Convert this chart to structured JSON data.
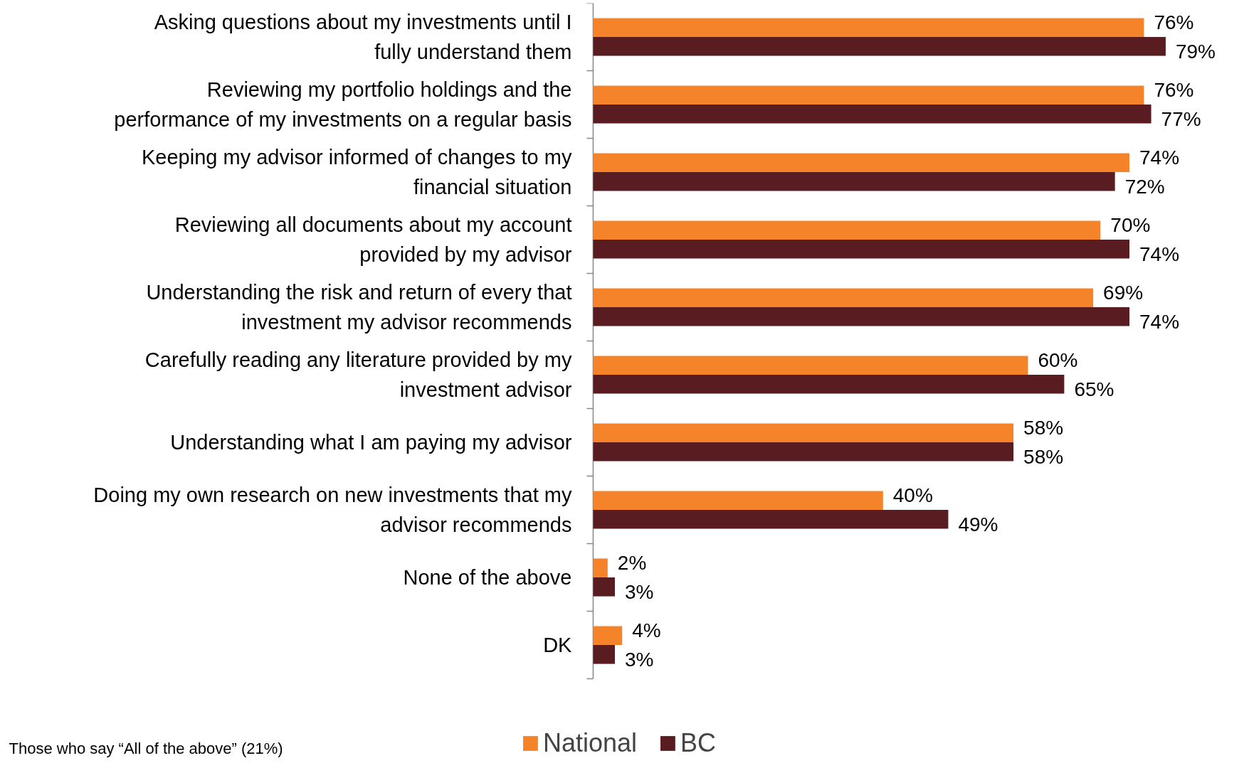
{
  "chart_data": {
    "type": "bar",
    "orientation": "horizontal",
    "categories": [
      "Asking questions about my investments until I fully understand them",
      "Reviewing my portfolio holdings and the performance of my investments on a regular basis",
      "Keeping my advisor informed of changes to my financial situation",
      "Reviewing all documents about my account provided by my advisor",
      "Understanding the risk and return of every that investment my advisor recommends",
      "Carefully reading any literature provided by my investment advisor",
      "Understanding what I am paying my advisor",
      "Doing my own research on new investments that my advisor recommends",
      "None of the above",
      "DK"
    ],
    "series": [
      {
        "name": "National",
        "color": "#f5832a",
        "values": [
          76,
          76,
          74,
          70,
          69,
          60,
          58,
          40,
          2,
          4
        ],
        "value_labels": [
          "76%",
          "76%",
          "74%",
          "70%",
          "69%",
          "60%",
          "58%",
          "40%",
          "2%",
          "4%"
        ]
      },
      {
        "name": "BC",
        "color": "#581c21",
        "values": [
          79,
          77,
          72,
          74,
          74,
          65,
          58,
          49,
          3,
          3
        ],
        "value_labels": [
          "79%",
          "77%",
          "72%",
          "74%",
          "74%",
          "65%",
          "58%",
          "49%",
          "3%",
          "3%"
        ]
      }
    ],
    "legend": "bottom",
    "grid": false,
    "annotations": [
      "Those who say “All of the above” (21%)"
    ]
  }
}
